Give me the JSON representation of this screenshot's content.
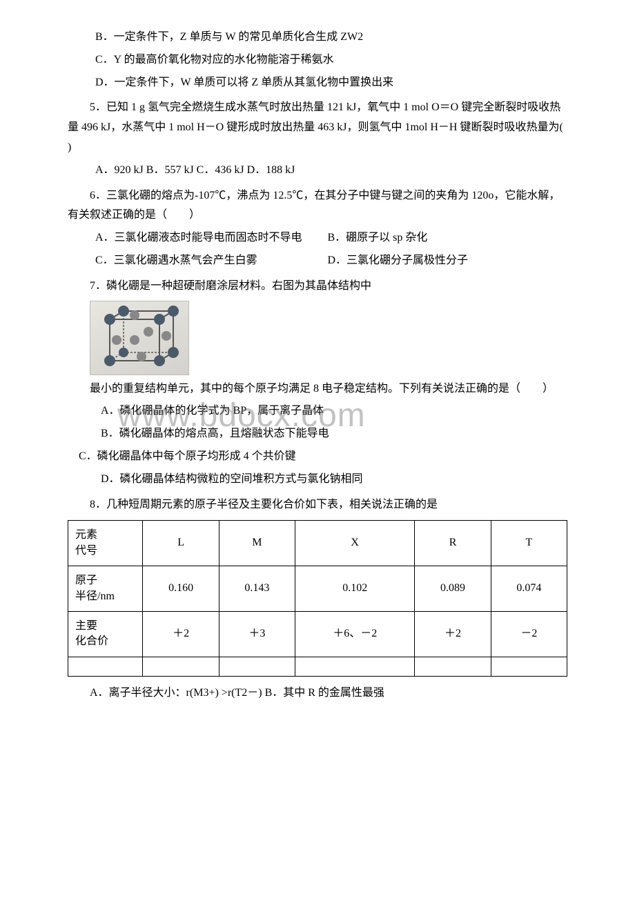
{
  "q4": {
    "optB": "B．一定条件下，Z 单质与 W 的常见单质化合生成 ZW2",
    "optC": "C．Y 的最高价氧化物对应的水化物能溶于稀氨水",
    "optD": "D．一定条件下，W 单质可以将 Z 单质从其氢化物中置换出来"
  },
  "q5": {
    "stem": "5．已知 1 g 氢气完全燃烧生成水蒸气时放出热量 121 kJ，氧气中 1 mol O＝O 键完全断裂时吸收热量 496 kJ，水蒸气中 1 mol H－O 键形成时放出热量 463 kJ，则氢气中 1mol H－H 键断裂时吸收热量为(  )",
    "opts": "A．920 kJ  B．557 kJ  C．436 kJ  D．188 kJ"
  },
  "q6": {
    "stem": "6．三氯化硼的熔点为-107℃，沸点为 12.5℃，在其分子中键与键之间的夹角为 120o，它能水解，有关叙述正确的是（　　）",
    "optA": "A．三氯化硼液态时能导电而固态时不导电",
    "optB": "B．硼原子以 sp 杂化",
    "optC": "C．三氯化硼遇水蒸气会产生白雾",
    "optD": "D．三氯化硼分子属极性分子"
  },
  "q7": {
    "stem1": "7．磷化硼是一种超硬耐磨涂层材料。右图为其晶体结构中",
    "stem2": "最小的重复结构单元，其中的每个原子均满足 8 电子稳定结构。下列有关说法正确的是（　　）",
    "optA": "A．磷化硼晶体的化学式为 BP，属于离子晶体",
    "optB": "B．磷化硼晶体的熔点高，且熔融状态下能导电",
    "optC": "C．磷化硼晶体中每个原子均形成 4 个共价键",
    "optD": "D．磷化硼晶体结构微粒的空间堆积方式与氯化钠相同"
  },
  "q8": {
    "stem": "8．几种短周期元素的原子半径及主要化合价如下表，相关说法正确的是",
    "table": {
      "headers": [
        "元素\n代号",
        "L",
        "M",
        "X",
        "R",
        "T"
      ],
      "row1_label": "原子\n半径/nm",
      "row1": [
        "0.160",
        "0.143",
        "0.102",
        "0.089",
        "0.074"
      ],
      "row2_label": "主要\n化合价",
      "row2": [
        "＋2",
        "＋3",
        "＋6、－2",
        "＋2",
        "－2"
      ]
    },
    "optA": "A．离子半径大小：r(M3+) >r(T2－) B．其中 R 的金属性最强"
  },
  "watermark": "www.bdocx.com"
}
